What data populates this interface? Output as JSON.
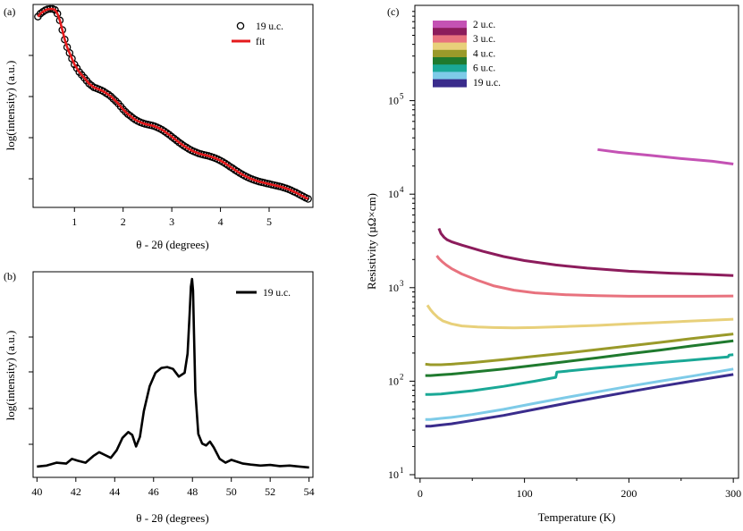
{
  "colors": {
    "marker": "#000000",
    "fit": "#e41a1c",
    "line_b": "#000000"
  },
  "chart_data": [
    {
      "panel_label": "(a)",
      "type": "scatter",
      "xlabel": "θ - 2θ (degrees)",
      "ylabel": "log(intensity) (a.u.)",
      "xlim": [
        0.15,
        5.9
      ],
      "ylim": [
        0,
        1
      ],
      "x_ticks": [
        "1",
        "2",
        "3",
        "4",
        "5"
      ],
      "y_tick_labels": [],
      "y_tick_count": 4,
      "legend": {
        "placement": "top-right",
        "entries": [
          "19 u.c.",
          "fit"
        ]
      },
      "series": [
        {
          "name": "19 u.c.",
          "style": "open-circle",
          "x": [
            0.25,
            0.3,
            0.35,
            0.4,
            0.45,
            0.5,
            0.55,
            0.6,
            0.65,
            0.7,
            0.75,
            0.8,
            0.85,
            0.9,
            0.95,
            1.0,
            1.05,
            1.1,
            1.15,
            1.2,
            1.25,
            1.3,
            1.35,
            1.4,
            1.45,
            1.5,
            1.55,
            1.6,
            1.65,
            1.7,
            1.75,
            1.8,
            1.85,
            1.9,
            1.95,
            2.0,
            2.05,
            2.1,
            2.15,
            2.2,
            2.25,
            2.3,
            2.35,
            2.4,
            2.45,
            2.5,
            2.55,
            2.6,
            2.65,
            2.7,
            2.75,
            2.8,
            2.85,
            2.9,
            2.95,
            3.0,
            3.05,
            3.1,
            3.15,
            3.2,
            3.25,
            3.3,
            3.35,
            3.4,
            3.45,
            3.5,
            3.55,
            3.6,
            3.65,
            3.7,
            3.75,
            3.8,
            3.85,
            3.9,
            3.95,
            4.0,
            4.05,
            4.1,
            4.15,
            4.2,
            4.25,
            4.3,
            4.35,
            4.4,
            4.45,
            4.5,
            4.55,
            4.6,
            4.65,
            4.7,
            4.75,
            4.8,
            4.85,
            4.9,
            4.95,
            5.0,
            5.05,
            5.1,
            5.15,
            5.2,
            5.25,
            5.3,
            5.35,
            5.4,
            5.45,
            5.5,
            5.55,
            5.6,
            5.65,
            5.7,
            5.75,
            5.8
          ],
          "y": [
            0.96,
            0.975,
            0.985,
            0.993,
            0.998,
            1.0,
            1.0,
            0.995,
            0.975,
            0.94,
            0.89,
            0.84,
            0.8,
            0.77,
            0.74,
            0.71,
            0.69,
            0.67,
            0.655,
            0.64,
            0.625,
            0.61,
            0.6,
            0.59,
            0.585,
            0.58,
            0.575,
            0.568,
            0.56,
            0.552,
            0.542,
            0.53,
            0.518,
            0.505,
            0.49,
            0.475,
            0.462,
            0.45,
            0.44,
            0.43,
            0.421,
            0.414,
            0.408,
            0.403,
            0.399,
            0.396,
            0.393,
            0.39,
            0.386,
            0.381,
            0.375,
            0.368,
            0.36,
            0.351,
            0.342,
            0.332,
            0.322,
            0.312,
            0.302,
            0.293,
            0.284,
            0.276,
            0.268,
            0.261,
            0.255,
            0.25,
            0.245,
            0.241,
            0.238,
            0.235,
            0.232,
            0.228,
            0.224,
            0.219,
            0.213,
            0.207,
            0.2,
            0.192,
            0.184,
            0.175,
            0.167,
            0.158,
            0.15,
            0.142,
            0.134,
            0.127,
            0.121,
            0.115,
            0.11,
            0.105,
            0.101,
            0.097,
            0.094,
            0.091,
            0.088,
            0.085,
            0.082,
            0.079,
            0.076,
            0.073,
            0.07,
            0.066,
            0.062,
            0.057,
            0.052,
            0.046,
            0.04,
            0.033,
            0.026,
            0.02,
            0.013,
            0.007
          ]
        },
        {
          "name": "fit",
          "style": "line",
          "x": [
            0.25,
            0.3,
            0.35,
            0.4,
            0.45,
            0.5,
            0.55,
            0.6,
            0.65,
            0.7,
            0.75,
            0.8,
            0.85,
            0.9,
            0.95,
            1.0,
            1.05,
            1.1,
            1.15,
            1.2,
            1.25,
            1.3,
            1.35,
            1.4,
            1.45,
            1.5,
            1.55,
            1.6,
            1.65,
            1.7,
            1.75,
            1.8,
            1.85,
            1.9,
            1.95,
            2.0,
            2.05,
            2.1,
            2.15,
            2.2,
            2.25,
            2.3,
            2.35,
            2.4,
            2.45,
            2.5,
            2.55,
            2.6,
            2.65,
            2.7,
            2.75,
            2.8,
            2.85,
            2.9,
            2.95,
            3.0,
            3.05,
            3.1,
            3.15,
            3.2,
            3.25,
            3.3,
            3.35,
            3.4,
            3.45,
            3.5,
            3.55,
            3.6,
            3.65,
            3.7,
            3.75,
            3.8,
            3.85,
            3.9,
            3.95,
            4.0,
            4.05,
            4.1,
            4.15,
            4.2,
            4.25,
            4.3,
            4.35,
            4.4,
            4.45,
            4.5,
            4.55,
            4.6,
            4.65,
            4.7,
            4.75,
            4.8,
            4.85,
            4.9,
            4.95,
            5.0,
            5.05,
            5.1,
            5.15,
            5.2,
            5.25,
            5.3,
            5.35,
            5.4,
            5.45,
            5.5,
            5.55,
            5.6,
            5.65,
            5.7,
            5.75,
            5.8
          ],
          "y": [
            0.96,
            0.975,
            0.985,
            0.993,
            0.998,
            1.0,
            1.0,
            0.995,
            0.975,
            0.94,
            0.89,
            0.84,
            0.8,
            0.77,
            0.74,
            0.71,
            0.69,
            0.67,
            0.655,
            0.64,
            0.625,
            0.61,
            0.6,
            0.59,
            0.585,
            0.58,
            0.575,
            0.568,
            0.56,
            0.552,
            0.542,
            0.53,
            0.518,
            0.505,
            0.49,
            0.475,
            0.462,
            0.45,
            0.44,
            0.43,
            0.421,
            0.414,
            0.408,
            0.403,
            0.399,
            0.396,
            0.393,
            0.39,
            0.386,
            0.381,
            0.375,
            0.368,
            0.36,
            0.351,
            0.342,
            0.332,
            0.322,
            0.312,
            0.302,
            0.293,
            0.284,
            0.276,
            0.268,
            0.261,
            0.255,
            0.25,
            0.245,
            0.241,
            0.238,
            0.235,
            0.232,
            0.228,
            0.224,
            0.219,
            0.213,
            0.207,
            0.2,
            0.192,
            0.184,
            0.175,
            0.167,
            0.158,
            0.15,
            0.142,
            0.134,
            0.127,
            0.121,
            0.115,
            0.11,
            0.105,
            0.101,
            0.097,
            0.094,
            0.091,
            0.088,
            0.085,
            0.082,
            0.079,
            0.076,
            0.073,
            0.07,
            0.066,
            0.062,
            0.057,
            0.052,
            0.046,
            0.04,
            0.033,
            0.026,
            0.02,
            0.013,
            0.007
          ]
        }
      ]
    },
    {
      "panel_label": "(b)",
      "type": "line",
      "xlabel": "θ - 2θ (degrees)",
      "ylabel": "log(intensity) (a.u.)",
      "xlim": [
        39.8,
        54.2
      ],
      "ylim": [
        0,
        1
      ],
      "x_ticks": [
        "40",
        "42",
        "44",
        "46",
        "48",
        "50",
        "52",
        "54"
      ],
      "y_tick_labels": [],
      "y_tick_count": 5,
      "legend": {
        "placement": "top-right",
        "entries": [
          "19 u.c."
        ]
      },
      "series": [
        {
          "name": "19 u.c.",
          "x": [
            40.0,
            40.5,
            41.0,
            41.5,
            41.8,
            42.1,
            42.5,
            42.9,
            43.2,
            43.5,
            43.8,
            44.1,
            44.4,
            44.7,
            44.9,
            45.1,
            45.3,
            45.5,
            45.8,
            46.1,
            46.4,
            46.7,
            47.0,
            47.3,
            47.6,
            47.75,
            47.85,
            47.92,
            47.98,
            48.03,
            48.08,
            48.15,
            48.3,
            48.5,
            48.7,
            48.9,
            49.1,
            49.4,
            49.7,
            50.0,
            50.3,
            50.6,
            51.0,
            51.5,
            52.0,
            52.5,
            53.0,
            53.5,
            54.0
          ],
          "y": [
            0.01,
            0.015,
            0.03,
            0.025,
            0.05,
            0.04,
            0.03,
            0.065,
            0.085,
            0.07,
            0.055,
            0.095,
            0.16,
            0.19,
            0.175,
            0.115,
            0.165,
            0.3,
            0.43,
            0.5,
            0.525,
            0.53,
            0.52,
            0.48,
            0.5,
            0.6,
            0.8,
            0.95,
            0.99,
            0.93,
            0.7,
            0.4,
            0.18,
            0.13,
            0.12,
            0.14,
            0.11,
            0.05,
            0.03,
            0.045,
            0.035,
            0.025,
            0.02,
            0.015,
            0.018,
            0.012,
            0.015,
            0.01,
            0.005
          ]
        }
      ]
    },
    {
      "panel_label": "(c)",
      "type": "line",
      "xlabel": "Temperature (K)",
      "ylabel": "Resistivity (µΩ×cm)",
      "xlim": [
        -5,
        305
      ],
      "ylim": [
        10,
        1000000
      ],
      "y_scale": "log",
      "x_ticks": [
        "0",
        "100",
        "200",
        "300"
      ],
      "y_ticks": [
        {
          "base": "10",
          "exp": "1"
        },
        {
          "base": "10",
          "exp": "2"
        },
        {
          "base": "10",
          "exp": "3"
        },
        {
          "base": "10",
          "exp": "4"
        },
        {
          "base": "10",
          "exp": "5"
        }
      ],
      "legend": {
        "placement": "top-left",
        "entries": [
          "2 u.c.",
          "3 u.c.",
          "4 u.c.",
          "6 u.c.",
          "19 u.c."
        ]
      },
      "legend_swatches": [
        "#c452b4",
        "#8c1c5c",
        "#e8727e",
        "#e8d07a",
        "#9a9a2a",
        "#1f7a2e",
        "#1aa896",
        "#7ecbe8",
        "#3a2c8c"
      ],
      "series": [
        {
          "color": "#c452b4",
          "x": [
            170,
            190,
            220,
            250,
            280,
            300
          ],
          "y": [
            30000,
            28000,
            26000,
            24000,
            22500,
            21000
          ]
        },
        {
          "color": "#8c1c5c",
          "x": [
            18,
            20,
            23,
            26,
            30,
            40,
            60,
            80,
            100,
            130,
            160,
            200,
            240,
            270,
            300
          ],
          "y": [
            4300,
            3800,
            3450,
            3250,
            3100,
            2850,
            2450,
            2150,
            1950,
            1750,
            1620,
            1500,
            1430,
            1390,
            1350
          ]
        },
        {
          "color": "#e8727e",
          "x": [
            16,
            18,
            21,
            25,
            30,
            40,
            55,
            70,
            90,
            110,
            140,
            170,
            200,
            240,
            270,
            300
          ],
          "y": [
            2200,
            2050,
            1900,
            1750,
            1600,
            1400,
            1200,
            1050,
            940,
            880,
            840,
            820,
            810,
            810,
            810,
            815
          ]
        },
        {
          "color": "#e8d07a",
          "x": [
            7,
            10,
            13,
            17,
            22,
            30,
            40,
            55,
            70,
            90,
            110,
            140,
            170,
            200,
            230,
            260,
            300
          ],
          "y": [
            650,
            580,
            530,
            480,
            440,
            410,
            390,
            380,
            375,
            372,
            375,
            385,
            395,
            410,
            425,
            440,
            460
          ]
        },
        {
          "color": "#9a9a2a",
          "x": [
            5,
            10,
            20,
            30,
            50,
            80,
            110,
            140,
            170,
            200,
            230,
            260,
            300
          ],
          "y": [
            152,
            150,
            150,
            152,
            158,
            170,
            185,
            200,
            218,
            238,
            260,
            285,
            320
          ]
        },
        {
          "color": "#1f7a2e",
          "x": [
            5,
            10,
            20,
            30,
            50,
            80,
            110,
            140,
            170,
            200,
            230,
            260,
            300
          ],
          "y": [
            115,
            115,
            117,
            119,
            125,
            135,
            148,
            162,
            178,
            196,
            215,
            238,
            270
          ]
        },
        {
          "color": "#1aa896",
          "x": [
            5,
            10,
            20,
            30,
            50,
            80,
            110,
            130,
            131,
            140,
            170,
            200,
            230,
            260,
            290,
            295,
            296,
            300
          ],
          "y": [
            72,
            72,
            73,
            75,
            79,
            88,
            100,
            110,
            125,
            128,
            138,
            148,
            158,
            168,
            180,
            182,
            190,
            192
          ]
        },
        {
          "color": "#7ecbe8",
          "x": [
            5,
            10,
            20,
            30,
            50,
            80,
            110,
            140,
            170,
            200,
            230,
            260,
            300
          ],
          "y": [
            39,
            39,
            40,
            41,
            44,
            50,
            58,
            67,
            77,
            88,
            100,
            113,
            135
          ]
        },
        {
          "color": "#3a2c8c",
          "x": [
            5,
            10,
            20,
            30,
            50,
            80,
            110,
            140,
            170,
            200,
            230,
            260,
            300
          ],
          "y": [
            33,
            33,
            34,
            35,
            38,
            43,
            50,
            58,
            67,
            77,
            88,
            100,
            118
          ]
        }
      ]
    }
  ]
}
